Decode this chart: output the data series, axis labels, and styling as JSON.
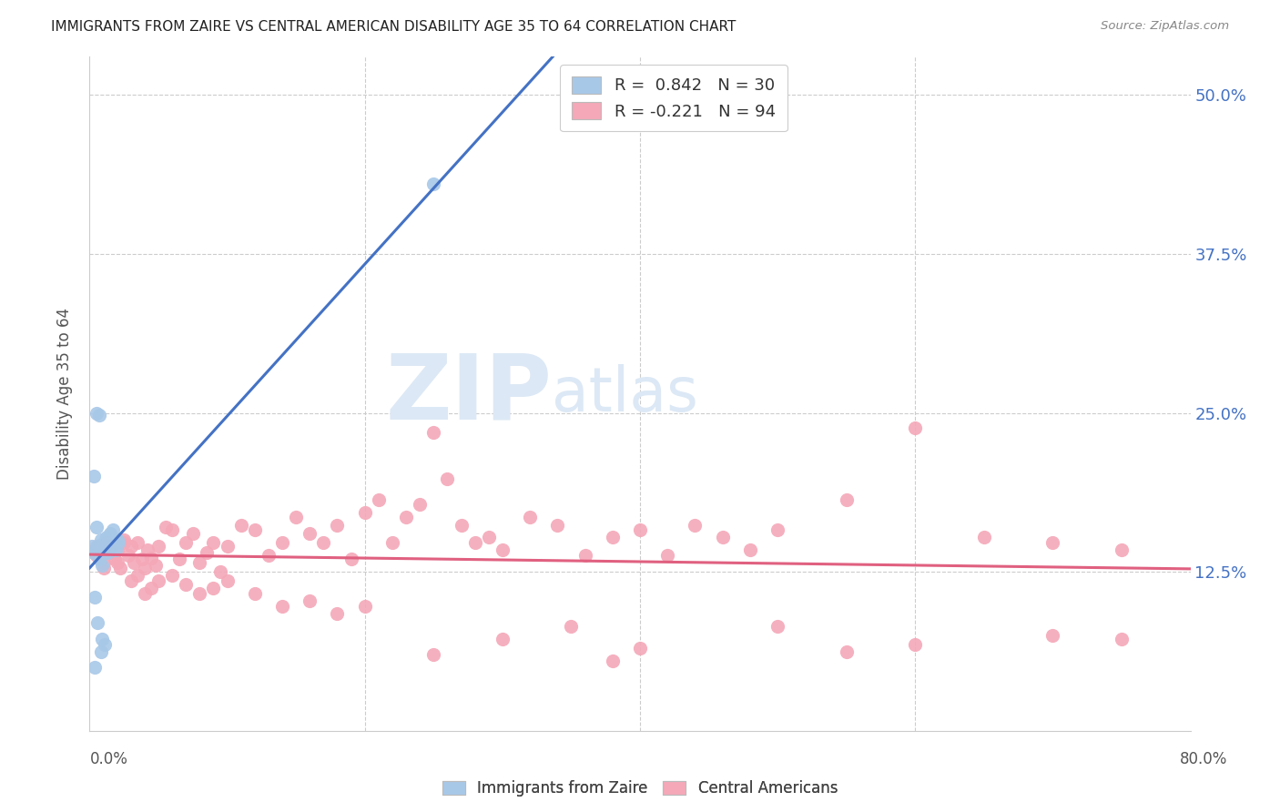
{
  "title": "IMMIGRANTS FROM ZAIRE VS CENTRAL AMERICAN DISABILITY AGE 35 TO 64 CORRELATION CHART",
  "source": "Source: ZipAtlas.com",
  "ylabel_ticks": [
    "12.5%",
    "25.0%",
    "37.5%",
    "50.0%"
  ],
  "ylabel_tick_vals": [
    0.125,
    0.25,
    0.375,
    0.5
  ],
  "ylabel_label": "Disability Age 35 to 64",
  "xmin": 0.0,
  "xmax": 0.8,
  "ymin": 0.0,
  "ymax": 0.53,
  "zaire_color": "#a8c8e8",
  "central_color": "#f4a8b8",
  "zaire_line_color": "#4472c4",
  "central_line_color": "#e06080",
  "watermark_zip": "ZIP",
  "watermark_atlas": "atlas",
  "watermark_color": "#dce8f5",
  "zaire_x": [
    0.002,
    0.003,
    0.004,
    0.005,
    0.006,
    0.007,
    0.008,
    0.009,
    0.01,
    0.011,
    0.012,
    0.013,
    0.014,
    0.015,
    0.016,
    0.017,
    0.018,
    0.019,
    0.02,
    0.021,
    0.003,
    0.005,
    0.007,
    0.009,
    0.011,
    0.013,
    0.25,
    0.004,
    0.006,
    0.008
  ],
  "zaire_y": [
    0.145,
    0.14,
    0.05,
    0.16,
    0.145,
    0.135,
    0.15,
    0.13,
    0.148,
    0.142,
    0.152,
    0.148,
    0.143,
    0.155,
    0.145,
    0.158,
    0.148,
    0.142,
    0.15,
    0.148,
    0.2,
    0.25,
    0.248,
    0.072,
    0.068,
    0.14,
    0.43,
    0.105,
    0.085,
    0.062
  ],
  "central_x": [
    0.005,
    0.008,
    0.01,
    0.012,
    0.015,
    0.018,
    0.02,
    0.022,
    0.025,
    0.028,
    0.03,
    0.032,
    0.035,
    0.038,
    0.04,
    0.042,
    0.045,
    0.048,
    0.05,
    0.055,
    0.06,
    0.065,
    0.07,
    0.075,
    0.08,
    0.085,
    0.09,
    0.095,
    0.1,
    0.11,
    0.12,
    0.13,
    0.14,
    0.15,
    0.16,
    0.17,
    0.18,
    0.19,
    0.2,
    0.21,
    0.22,
    0.23,
    0.24,
    0.25,
    0.26,
    0.27,
    0.28,
    0.29,
    0.3,
    0.32,
    0.34,
    0.36,
    0.38,
    0.4,
    0.42,
    0.44,
    0.46,
    0.48,
    0.5,
    0.55,
    0.6,
    0.65,
    0.7,
    0.75,
    0.005,
    0.01,
    0.015,
    0.02,
    0.025,
    0.03,
    0.035,
    0.04,
    0.045,
    0.05,
    0.06,
    0.07,
    0.08,
    0.09,
    0.1,
    0.12,
    0.14,
    0.16,
    0.18,
    0.2,
    0.25,
    0.3,
    0.35,
    0.4,
    0.38,
    0.7,
    0.75,
    0.6,
    0.5,
    0.55
  ],
  "central_y": [
    0.145,
    0.138,
    0.132,
    0.148,
    0.14,
    0.135,
    0.142,
    0.128,
    0.15,
    0.138,
    0.145,
    0.132,
    0.148,
    0.135,
    0.128,
    0.142,
    0.136,
    0.13,
    0.145,
    0.16,
    0.158,
    0.135,
    0.148,
    0.155,
    0.132,
    0.14,
    0.148,
    0.125,
    0.145,
    0.162,
    0.158,
    0.138,
    0.148,
    0.168,
    0.155,
    0.148,
    0.162,
    0.135,
    0.172,
    0.182,
    0.148,
    0.168,
    0.178,
    0.235,
    0.198,
    0.162,
    0.148,
    0.152,
    0.142,
    0.168,
    0.162,
    0.138,
    0.152,
    0.158,
    0.138,
    0.162,
    0.152,
    0.142,
    0.158,
    0.182,
    0.238,
    0.152,
    0.148,
    0.142,
    0.138,
    0.128,
    0.142,
    0.132,
    0.148,
    0.118,
    0.122,
    0.108,
    0.112,
    0.118,
    0.122,
    0.115,
    0.108,
    0.112,
    0.118,
    0.108,
    0.098,
    0.102,
    0.092,
    0.098,
    0.06,
    0.072,
    0.082,
    0.065,
    0.055,
    0.075,
    0.072,
    0.068,
    0.082,
    0.062
  ]
}
